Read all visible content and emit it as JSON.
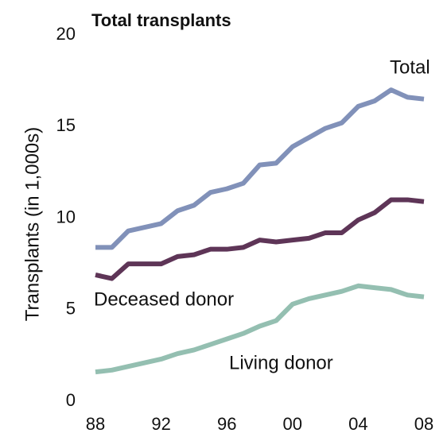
{
  "chart_data": {
    "type": "line",
    "title": "Total transplants",
    "y_label": "Transplants (in 1,000s)",
    "categories": [
      "88",
      null,
      null,
      null,
      "92",
      null,
      null,
      null,
      "96",
      null,
      null,
      null,
      "00",
      null,
      null,
      null,
      "04",
      null,
      null,
      null,
      "08"
    ],
    "ylim": [
      0,
      20
    ],
    "yticks": [
      0,
      5,
      10,
      15,
      20
    ],
    "series": [
      {
        "name": "Total",
        "color": "#8191b9",
        "values": [
          8.4,
          8.4,
          9.3,
          9.5,
          9.7,
          10.4,
          10.7,
          11.4,
          11.6,
          11.9,
          12.9,
          13.0,
          13.9,
          14.4,
          14.9,
          15.2,
          16.1,
          16.4,
          17.0,
          16.6,
          16.5
        ]
      },
      {
        "name": "Deceased donor",
        "color": "#5e3557",
        "values": [
          6.9,
          6.7,
          7.5,
          7.5,
          7.5,
          7.9,
          8.0,
          8.3,
          8.3,
          8.4,
          8.8,
          8.7,
          8.8,
          8.9,
          9.2,
          9.2,
          9.9,
          10.3,
          11.0,
          11.0,
          10.9
        ]
      },
      {
        "name": "Living donor",
        "color": "#94bfb1",
        "values": [
          1.6,
          1.7,
          1.9,
          2.1,
          2.3,
          2.6,
          2.8,
          3.1,
          3.4,
          3.7,
          4.1,
          4.4,
          5.3,
          5.6,
          5.8,
          6.0,
          6.3,
          6.2,
          6.1,
          5.8,
          5.7
        ]
      }
    ]
  }
}
